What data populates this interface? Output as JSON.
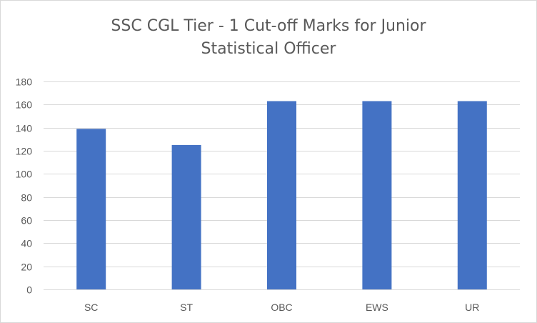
{
  "chart_data": {
    "type": "bar",
    "title": "SSC CGL Tier - 1 Cut-off Marks for Junior Statistical Officer",
    "title_lines": [
      "SSC CGL Tier - 1 Cut-off Marks for Junior",
      "Statistical Officer"
    ],
    "categories": [
      "SC",
      "ST",
      "OBC",
      "EWS",
      "UR"
    ],
    "values": [
      139,
      125,
      163,
      163,
      163
    ],
    "xlabel": "",
    "ylabel": "",
    "ylim": [
      0,
      180
    ],
    "yticks": [
      0,
      20,
      40,
      60,
      80,
      100,
      120,
      140,
      160,
      180
    ],
    "grid": true,
    "legend": "none",
    "colors": {
      "bar": "#4472c4",
      "grid": "#d9d9d9",
      "text": "#595959"
    }
  }
}
